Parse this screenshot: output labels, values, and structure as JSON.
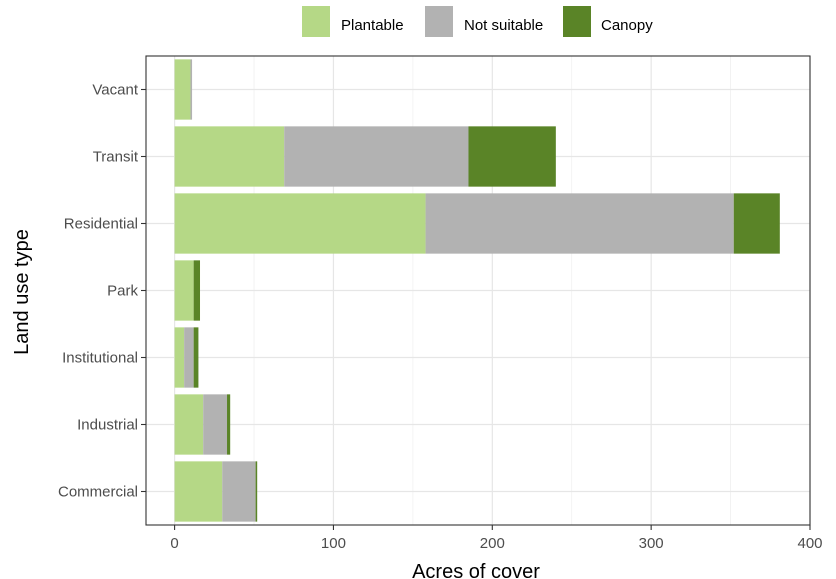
{
  "chart_data": {
    "type": "bar",
    "orientation": "horizontal",
    "stacked": true,
    "categories": [
      "Vacant",
      "Transit",
      "Residential",
      "Park",
      "Institutional",
      "Industrial",
      "Commercial"
    ],
    "series": [
      {
        "name": "Plantable",
        "color": "#b5d886",
        "values": [
          10,
          69,
          158,
          12,
          6,
          18,
          30
        ]
      },
      {
        "name": "Not suitable",
        "color": "#b2b2b2",
        "values": [
          1,
          116,
          194,
          0,
          6,
          15,
          21
        ]
      },
      {
        "name": "Canopy",
        "color": "#5a8427",
        "values": [
          0,
          55,
          29,
          4,
          3,
          2,
          1
        ]
      }
    ],
    "xlabel": "Acres of cover",
    "ylabel": "Land use type",
    "xlim": [
      -18,
      400
    ],
    "xticks": [
      "0",
      "100",
      "200",
      "300",
      "400"
    ],
    "grid": true,
    "legend_position": "top"
  }
}
